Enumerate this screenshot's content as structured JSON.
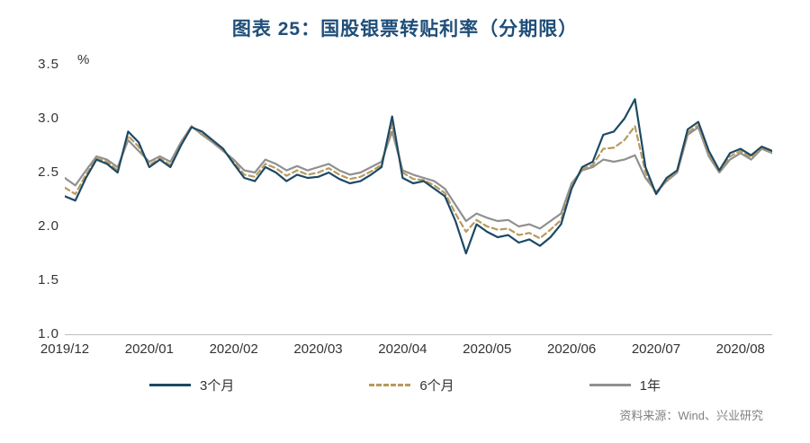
{
  "title": "图表 25：国股银票转贴利率（分期限）",
  "y_axis_unit": "%",
  "source": "资料来源：Wind、兴业研究",
  "colors": {
    "title": "#1f4e79",
    "series_3m": "#1c4966",
    "series_6m": "#b79a5e",
    "series_1y": "#909090",
    "axis": "#bfbfbf"
  },
  "chart_data": {
    "type": "line",
    "title": "图表 25：国股银票转贴利率（分期限）",
    "xlabel": "",
    "ylabel": "%",
    "ylim": [
      1.0,
      3.5
    ],
    "grid": false,
    "legend_position": "bottom",
    "y_ticks": [
      "3.5",
      "3.0",
      "2.5",
      "2.0",
      "1.5",
      "1.0"
    ],
    "x_tick_labels": [
      "2019/12",
      "2020/01",
      "2020/02",
      "2020/03",
      "2020/04",
      "2020/05",
      "2020/06",
      "2020/07",
      "2020/08"
    ],
    "x_tick_indices": [
      0,
      8,
      16,
      24,
      32,
      40,
      48,
      56,
      64
    ],
    "series": [
      {
        "name": "3个月",
        "color": "#1c4966",
        "dash": false,
        "values": [
          2.28,
          2.24,
          2.45,
          2.62,
          2.58,
          2.5,
          2.88,
          2.78,
          2.55,
          2.62,
          2.55,
          2.75,
          2.92,
          2.88,
          2.8,
          2.72,
          2.58,
          2.45,
          2.42,
          2.55,
          2.5,
          2.42,
          2.48,
          2.45,
          2.46,
          2.5,
          2.44,
          2.4,
          2.42,
          2.48,
          2.55,
          3.02,
          2.45,
          2.4,
          2.42,
          2.35,
          2.28,
          2.05,
          1.75,
          2.02,
          1.95,
          1.9,
          1.92,
          1.85,
          1.88,
          1.82,
          1.9,
          2.02,
          2.35,
          2.55,
          2.6,
          2.85,
          2.88,
          3.0,
          3.18,
          2.55,
          2.3,
          2.45,
          2.52,
          2.9,
          2.97,
          2.7,
          2.52,
          2.68,
          2.72,
          2.66,
          2.74,
          2.7
        ]
      },
      {
        "name": "6个月",
        "color": "#b79a5e",
        "dash": true,
        "values": [
          2.36,
          2.3,
          2.48,
          2.63,
          2.6,
          2.52,
          2.84,
          2.74,
          2.57,
          2.63,
          2.57,
          2.76,
          2.93,
          2.86,
          2.79,
          2.71,
          2.6,
          2.48,
          2.46,
          2.58,
          2.54,
          2.47,
          2.52,
          2.48,
          2.5,
          2.54,
          2.48,
          2.44,
          2.46,
          2.51,
          2.57,
          2.95,
          2.5,
          2.44,
          2.43,
          2.38,
          2.31,
          2.12,
          1.95,
          2.06,
          2.0,
          1.97,
          1.98,
          1.92,
          1.94,
          1.89,
          1.97,
          2.06,
          2.37,
          2.53,
          2.57,
          2.72,
          2.73,
          2.8,
          2.93,
          2.5,
          2.3,
          2.43,
          2.51,
          2.87,
          2.94,
          2.67,
          2.51,
          2.65,
          2.7,
          2.64,
          2.73,
          2.69
        ]
      },
      {
        "name": "1年",
        "color": "#909090",
        "dash": false,
        "values": [
          2.45,
          2.38,
          2.52,
          2.65,
          2.62,
          2.55,
          2.8,
          2.7,
          2.6,
          2.65,
          2.6,
          2.78,
          2.93,
          2.85,
          2.78,
          2.7,
          2.62,
          2.52,
          2.5,
          2.62,
          2.58,
          2.52,
          2.56,
          2.52,
          2.55,
          2.58,
          2.52,
          2.48,
          2.5,
          2.55,
          2.6,
          2.88,
          2.52,
          2.48,
          2.45,
          2.42,
          2.35,
          2.2,
          2.05,
          2.12,
          2.08,
          2.05,
          2.06,
          2.0,
          2.02,
          1.98,
          2.05,
          2.12,
          2.4,
          2.52,
          2.55,
          2.62,
          2.6,
          2.62,
          2.66,
          2.45,
          2.32,
          2.42,
          2.5,
          2.85,
          2.92,
          2.65,
          2.5,
          2.62,
          2.68,
          2.62,
          2.72,
          2.68
        ]
      }
    ]
  }
}
